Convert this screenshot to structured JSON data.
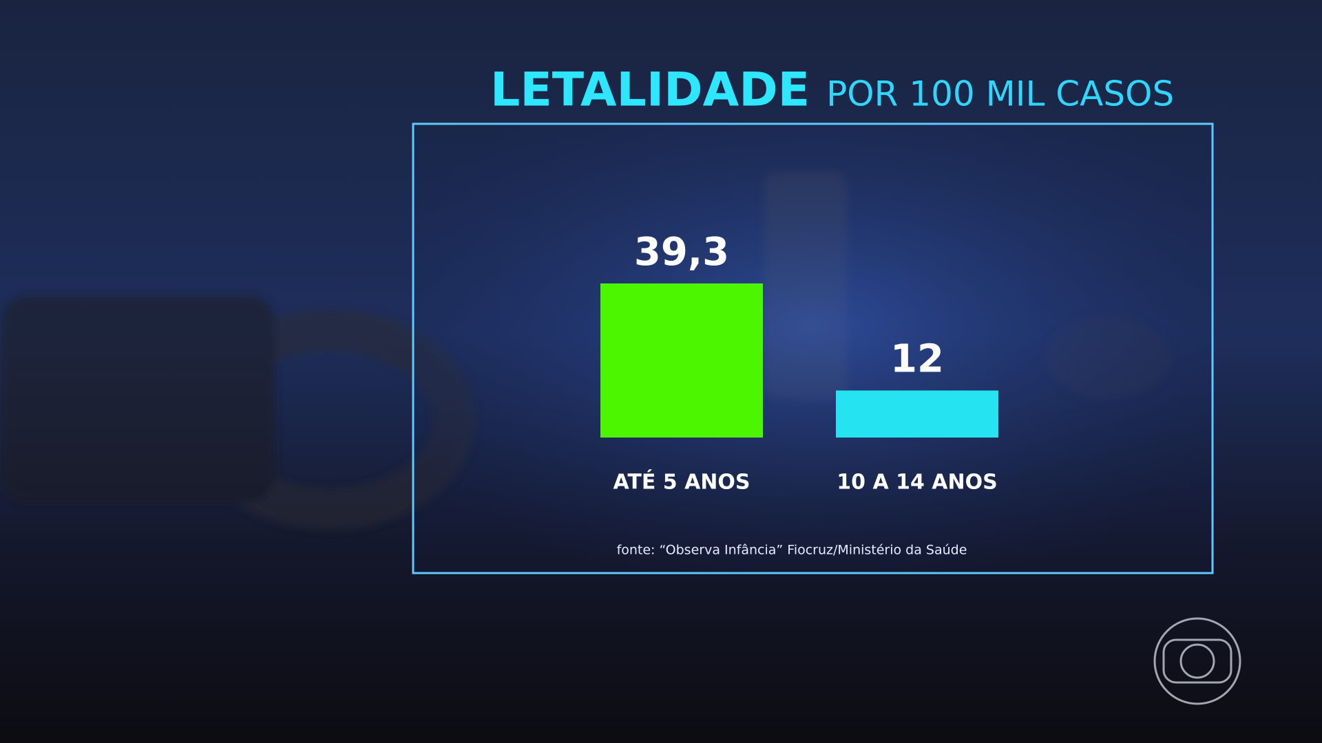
{
  "chart_data": {
    "type": "bar",
    "title": "LETALIDADE",
    "subtitle": "POR 100 MIL CASOS",
    "categories": [
      "ATÉ 5 ANOS",
      "10 A 14 ANOS"
    ],
    "values": [
      39.3,
      12
    ],
    "value_labels": [
      "39,3",
      "12"
    ],
    "colors": [
      "#4cf500",
      "#26e3f2"
    ],
    "source": "fonte: “Observa Infância” Fiocruz/Ministério da Saúde"
  }
}
